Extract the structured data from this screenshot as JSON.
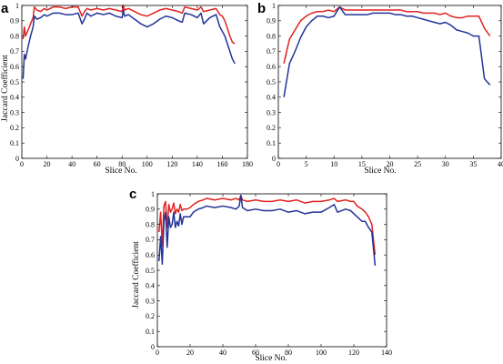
{
  "chart_data": [
    {
      "type": "line",
      "panel_label": "a",
      "xlabel": "Slice No.",
      "ylabel": "Jaccard Coefficient",
      "xlim": [
        0,
        180
      ],
      "ylim": [
        0,
        1
      ],
      "xticks": [
        0,
        20,
        40,
        60,
        80,
        100,
        120,
        140,
        160,
        180
      ],
      "yticks": [
        0,
        0.1,
        0.2,
        0.3,
        0.4,
        0.5,
        0.6,
        0.7,
        0.8,
        0.9,
        1
      ],
      "grid": false,
      "series": [
        {
          "color": "#e0221f",
          "x": [
            1,
            2,
            3,
            5,
            7,
            9,
            10,
            12,
            15,
            18,
            20,
            25,
            30,
            35,
            40,
            45,
            48,
            50,
            52,
            55,
            60,
            65,
            70,
            75,
            80,
            81,
            82,
            85,
            90,
            95,
            100,
            105,
            110,
            115,
            120,
            125,
            128,
            130,
            135,
            140,
            143,
            145,
            150,
            155,
            158,
            160,
            162,
            164,
            166,
            168,
            170
          ],
          "y": [
            0.78,
            0.86,
            0.8,
            0.84,
            0.88,
            0.92,
            0.99,
            0.97,
            0.96,
            0.98,
            0.97,
            0.99,
            0.99,
            0.98,
            0.99,
            0.99,
            0.93,
            0.96,
            0.98,
            0.97,
            0.98,
            0.97,
            0.98,
            0.97,
            0.96,
            1.0,
            0.97,
            0.98,
            0.96,
            0.94,
            0.93,
            0.95,
            0.97,
            0.98,
            0.97,
            0.96,
            0.95,
            0.99,
            0.98,
            0.97,
            0.99,
            0.96,
            0.97,
            0.98,
            0.94,
            0.93,
            0.9,
            0.85,
            0.8,
            0.76,
            0.75
          ]
        },
        {
          "color": "#21339a",
          "x": [
            1,
            2,
            3,
            5,
            7,
            9,
            10,
            12,
            15,
            18,
            20,
            25,
            30,
            35,
            40,
            45,
            48,
            50,
            52,
            55,
            60,
            65,
            70,
            75,
            80,
            81,
            82,
            85,
            90,
            95,
            100,
            105,
            110,
            115,
            120,
            125,
            128,
            130,
            135,
            140,
            143,
            145,
            150,
            155,
            158,
            160,
            162,
            164,
            166,
            168,
            170
          ],
          "y": [
            0.52,
            0.68,
            0.65,
            0.73,
            0.8,
            0.86,
            0.93,
            0.91,
            0.92,
            0.94,
            0.93,
            0.95,
            0.95,
            0.94,
            0.94,
            0.95,
            0.88,
            0.91,
            0.95,
            0.93,
            0.95,
            0.94,
            0.95,
            0.93,
            0.92,
            0.97,
            0.93,
            0.94,
            0.91,
            0.88,
            0.86,
            0.88,
            0.91,
            0.93,
            0.92,
            0.9,
            0.89,
            0.95,
            0.94,
            0.92,
            0.95,
            0.88,
            0.92,
            0.94,
            0.86,
            0.83,
            0.8,
            0.75,
            0.7,
            0.65,
            0.62
          ]
        }
      ]
    },
    {
      "type": "line",
      "panel_label": "b",
      "xlabel": "Slice No.",
      "ylabel": "",
      "xlim": [
        0,
        40
      ],
      "ylim": [
        0,
        1
      ],
      "xticks": [
        0,
        5,
        10,
        15,
        20,
        25,
        30,
        35,
        40
      ],
      "yticks": [
        0,
        0.1,
        0.2,
        0.3,
        0.4,
        0.5,
        0.6,
        0.7,
        0.8,
        0.9,
        1
      ],
      "grid": false,
      "series": [
        {
          "color": "#e0221f",
          "x": [
            1,
            2,
            3,
            4,
            5,
            6,
            7,
            8,
            9,
            10,
            11,
            12,
            13,
            14,
            15,
            16,
            17,
            18,
            19,
            20,
            21,
            22,
            23,
            24,
            25,
            26,
            27,
            28,
            29,
            30,
            31,
            32,
            33,
            34,
            35,
            36,
            37,
            38
          ],
          "y": [
            0.62,
            0.78,
            0.84,
            0.9,
            0.93,
            0.95,
            0.96,
            0.96,
            0.97,
            0.96,
            0.99,
            0.97,
            0.97,
            0.97,
            0.97,
            0.97,
            0.97,
            0.97,
            0.97,
            0.97,
            0.97,
            0.97,
            0.96,
            0.96,
            0.96,
            0.95,
            0.95,
            0.95,
            0.94,
            0.95,
            0.93,
            0.92,
            0.92,
            0.93,
            0.93,
            0.93,
            0.85,
            0.8
          ]
        },
        {
          "color": "#21339a",
          "x": [
            1,
            2,
            3,
            4,
            5,
            6,
            7,
            8,
            9,
            10,
            11,
            12,
            13,
            14,
            15,
            16,
            17,
            18,
            19,
            20,
            21,
            22,
            23,
            24,
            25,
            26,
            27,
            28,
            29,
            30,
            31,
            32,
            33,
            34,
            35,
            36,
            37,
            38
          ],
          "y": [
            0.4,
            0.62,
            0.7,
            0.79,
            0.86,
            0.9,
            0.93,
            0.93,
            0.92,
            0.93,
            0.99,
            0.94,
            0.94,
            0.94,
            0.94,
            0.94,
            0.95,
            0.95,
            0.95,
            0.95,
            0.94,
            0.94,
            0.93,
            0.93,
            0.92,
            0.91,
            0.9,
            0.89,
            0.88,
            0.89,
            0.87,
            0.84,
            0.83,
            0.82,
            0.8,
            0.8,
            0.52,
            0.48
          ]
        }
      ]
    },
    {
      "type": "line",
      "panel_label": "c",
      "xlabel": "Slice No.",
      "ylabel": "Jaccard Coefficient",
      "xlim": [
        0,
        140
      ],
      "ylim": [
        0,
        1
      ],
      "xticks": [
        0,
        20,
        40,
        60,
        80,
        100,
        120,
        140
      ],
      "yticks": [
        0,
        0.1,
        0.2,
        0.3,
        0.4,
        0.5,
        0.6,
        0.7,
        0.8,
        0.9,
        1
      ],
      "grid": false,
      "series": [
        {
          "color": "#e0221f",
          "x": [
            1,
            2,
            3,
            4,
            5,
            6,
            7,
            8,
            9,
            10,
            11,
            12,
            13,
            14,
            15,
            16,
            18,
            20,
            22,
            25,
            28,
            30,
            35,
            40,
            45,
            48,
            50,
            51,
            52,
            55,
            60,
            65,
            70,
            75,
            80,
            85,
            90,
            95,
            100,
            105,
            108,
            110,
            115,
            118,
            120,
            122,
            125,
            127,
            129,
            131,
            133
          ],
          "y": [
            0.75,
            0.88,
            0.66,
            0.92,
            0.95,
            0.78,
            0.93,
            0.88,
            0.9,
            0.94,
            0.87,
            0.9,
            0.88,
            0.93,
            0.89,
            0.9,
            0.9,
            0.91,
            0.93,
            0.95,
            0.96,
            0.97,
            0.96,
            0.97,
            0.96,
            0.97,
            0.96,
            0.99,
            0.96,
            0.95,
            0.96,
            0.95,
            0.95,
            0.96,
            0.95,
            0.96,
            0.94,
            0.95,
            0.95,
            0.96,
            0.97,
            0.95,
            0.96,
            0.95,
            0.95,
            0.92,
            0.9,
            0.88,
            0.85,
            0.8,
            0.6
          ]
        },
        {
          "color": "#21339a",
          "x": [
            1,
            2,
            3,
            4,
            5,
            6,
            7,
            8,
            9,
            10,
            11,
            12,
            13,
            14,
            15,
            16,
            18,
            20,
            22,
            25,
            28,
            30,
            35,
            40,
            45,
            48,
            50,
            51,
            52,
            55,
            60,
            65,
            70,
            75,
            80,
            85,
            90,
            95,
            100,
            105,
            108,
            110,
            115,
            118,
            120,
            122,
            125,
            127,
            129,
            131,
            133
          ],
          "y": [
            0.56,
            0.72,
            0.54,
            0.82,
            0.88,
            0.65,
            0.85,
            0.78,
            0.8,
            0.88,
            0.78,
            0.82,
            0.79,
            0.87,
            0.8,
            0.85,
            0.85,
            0.85,
            0.88,
            0.9,
            0.91,
            0.92,
            0.91,
            0.92,
            0.91,
            0.9,
            0.92,
            0.99,
            0.91,
            0.89,
            0.9,
            0.89,
            0.89,
            0.9,
            0.88,
            0.89,
            0.87,
            0.88,
            0.88,
            0.91,
            0.93,
            0.88,
            0.9,
            0.89,
            0.87,
            0.85,
            0.82,
            0.82,
            0.78,
            0.75,
            0.53
          ]
        }
      ]
    }
  ]
}
